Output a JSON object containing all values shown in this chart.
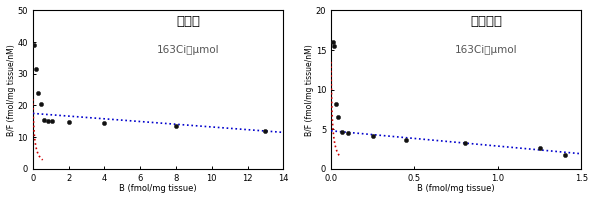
{
  "panel1": {
    "title": "線条体",
    "subtitle": "163Ci／μmol",
    "xlabel": "B (fmol/mg tissue)",
    "ylabel": "B/F (fmol/mg tissue/nM)",
    "xlim": [
      0,
      14
    ],
    "ylim": [
      0,
      50
    ],
    "xticks": [
      0,
      2,
      4,
      6,
      8,
      10,
      12,
      14
    ],
    "yticks": [
      0,
      10,
      20,
      30,
      40,
      50
    ],
    "scatter_x": [
      0.08,
      0.18,
      0.28,
      0.45,
      0.65,
      0.85,
      1.05,
      2.0,
      4.0,
      8.0,
      13.0
    ],
    "scatter_y": [
      39.0,
      31.5,
      24.0,
      20.5,
      15.5,
      15.2,
      15.0,
      14.8,
      14.5,
      13.5,
      11.8
    ],
    "blue_line_x": [
      0.0,
      14.0
    ],
    "blue_line_y": [
      17.5,
      11.5
    ],
    "red_curve_Bmax": 22.0,
    "red_curve_Kd": 0.08,
    "red_curve_x_end": 0.55
  },
  "panel2": {
    "title": "大脳皮質",
    "subtitle": "163Ci／μmol",
    "xlabel": "B (fmol/mg tissue)",
    "ylabel": "B/F (fmol/mg tissue/nM)",
    "xlim": [
      0,
      1.5
    ],
    "ylim": [
      0,
      20
    ],
    "xticks": [
      0.0,
      0.5,
      1.0,
      1.5
    ],
    "yticks": [
      0,
      5,
      10,
      15,
      20
    ],
    "scatter_x": [
      0.01,
      0.018,
      0.028,
      0.042,
      0.065,
      0.1,
      0.25,
      0.45,
      0.8,
      1.25,
      1.4
    ],
    "scatter_y": [
      16.0,
      15.5,
      8.2,
      6.5,
      4.7,
      4.5,
      4.2,
      3.7,
      3.3,
      2.6,
      1.7
    ],
    "blue_line_x": [
      0.0,
      1.5
    ],
    "blue_line_y": [
      4.8,
      1.9
    ],
    "red_curve_Bmax": 13.5,
    "red_curve_Kd": 0.007,
    "red_curve_x_end": 0.055
  },
  "scatter_color": "#111111",
  "blue_color": "#0000cc",
  "red_color": "#cc0000"
}
